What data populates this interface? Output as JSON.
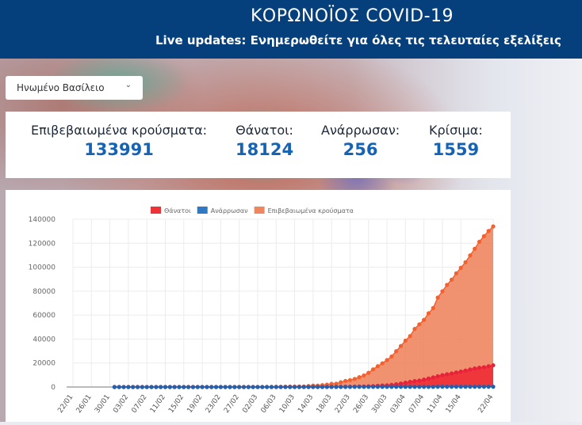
{
  "header": {
    "title": "ΚΟΡΩΝΟΪΟΣ COVID-19",
    "subtitle": "Live updates: Ενημερωθείτε για όλες τις τελευταίες εξελίξεις"
  },
  "country_select": {
    "value": "Ηνωμένο Βασίλειο",
    "icon": "chevron-down-icon"
  },
  "stats": [
    {
      "label": "Επιβεβαιωμένα κρούσματα:",
      "value": "133991"
    },
    {
      "label": "Θάνατοι:",
      "value": "18124"
    },
    {
      "label": "Ανάρρωσαν:",
      "value": "256"
    },
    {
      "label": "Κρίσιμα:",
      "value": "1559"
    }
  ],
  "chart_data": {
    "type": "area",
    "legend_position": "top",
    "grid": true,
    "ylim": [
      0,
      140000
    ],
    "yticks": [
      0,
      20000,
      40000,
      60000,
      80000,
      100000,
      120000,
      140000
    ],
    "xticks": [
      "22/01",
      "26/01",
      "30/01",
      "03/02",
      "07/02",
      "11/02",
      "15/02",
      "19/02",
      "23/02",
      "27/02",
      "02/03",
      "06/03",
      "10/03",
      "14/03",
      "18/03",
      "22/03",
      "26/03",
      "30/03",
      "03/04",
      "07/04",
      "11/04",
      "15/04",
      "22/04"
    ],
    "x": [
      "22/01",
      "23/01",
      "24/01",
      "25/01",
      "26/01",
      "27/01",
      "28/01",
      "29/01",
      "30/01",
      "31/01",
      "01/02",
      "02/02",
      "03/02",
      "04/02",
      "05/02",
      "06/02",
      "07/02",
      "08/02",
      "09/02",
      "10/02",
      "11/02",
      "12/02",
      "13/02",
      "14/02",
      "15/02",
      "16/02",
      "17/02",
      "18/02",
      "19/02",
      "20/02",
      "21/02",
      "22/02",
      "23/02",
      "24/02",
      "25/02",
      "26/02",
      "27/02",
      "28/02",
      "29/02",
      "01/03",
      "02/03",
      "03/03",
      "04/03",
      "05/03",
      "06/03",
      "07/03",
      "08/03",
      "09/03",
      "10/03",
      "11/03",
      "12/03",
      "13/03",
      "14/03",
      "15/03",
      "16/03",
      "17/03",
      "18/03",
      "19/03",
      "20/03",
      "21/03",
      "22/03",
      "23/03",
      "24/03",
      "25/03",
      "26/03",
      "27/03",
      "28/03",
      "29/03",
      "30/03",
      "31/03",
      "01/04",
      "02/04",
      "03/04",
      "04/04",
      "05/04",
      "06/04",
      "07/04",
      "08/04",
      "09/04",
      "10/04",
      "11/04",
      "12/04",
      "13/04",
      "14/04",
      "15/04",
      "16/04",
      "17/04",
      "18/04",
      "19/04",
      "20/04",
      "21/04",
      "22/04"
    ],
    "series": [
      {
        "name": "Επιβεβαιωμένα κρούσματα",
        "color": "#ee8660",
        "marker": "#f2612f",
        "values": [
          null,
          null,
          null,
          null,
          null,
          null,
          null,
          null,
          null,
          2,
          2,
          2,
          8,
          8,
          9,
          9,
          9,
          9,
          9,
          9,
          9,
          9,
          9,
          9,
          9,
          9,
          9,
          9,
          9,
          9,
          9,
          9,
          9,
          13,
          13,
          13,
          15,
          20,
          23,
          36,
          40,
          51,
          86,
          116,
          164,
          207,
          274,
          322,
          384,
          459,
          459,
          802,
          1144,
          1145,
          1551,
          1960,
          2642,
          2716,
          4014,
          5067,
          5745,
          6726,
          8164,
          9640,
          11812,
          14745,
          17312,
          19780,
          22453,
          25481,
          29865,
          34173,
          38689,
          42477,
          48436,
          52279,
          55949,
          61474,
          65872,
          74605,
          79874,
          85206,
          89570,
          94845,
          99483,
          104145,
          109769,
          115314,
          121172,
          125856,
          130172,
          133991
        ]
      },
      {
        "name": "Θάνατοι",
        "color": "#ee3338",
        "marker": "#e8223a",
        "values": [
          null,
          null,
          null,
          null,
          null,
          null,
          null,
          null,
          null,
          0,
          0,
          0,
          0,
          0,
          0,
          0,
          0,
          0,
          0,
          0,
          0,
          0,
          0,
          0,
          0,
          0,
          0,
          0,
          0,
          0,
          0,
          0,
          0,
          0,
          0,
          0,
          0,
          0,
          0,
          0,
          0,
          0,
          0,
          1,
          2,
          2,
          3,
          4,
          6,
          8,
          8,
          8,
          21,
          21,
          56,
          56,
          72,
          138,
          178,
          234,
          282,
          336,
          423,
          466,
          580,
          761,
          1021,
          1231,
          1411,
          1793,
          2357,
          2926,
          3611,
          4320,
          4943,
          5385,
          6171,
          7111,
          7993,
          8974,
          9892,
          10629,
          11347,
          12129,
          12894,
          13759,
          14607,
          15498,
          16095,
          16550,
          17378,
          18124
        ]
      },
      {
        "name": "Ανάρρωσαν",
        "color": "#2e78c4",
        "marker": "#1f63b0",
        "values": [
          null,
          null,
          null,
          null,
          null,
          null,
          null,
          null,
          null,
          0,
          0,
          0,
          0,
          0,
          0,
          0,
          0,
          0,
          0,
          0,
          0,
          0,
          8,
          8,
          8,
          8,
          8,
          8,
          8,
          8,
          8,
          8,
          8,
          8,
          8,
          8,
          8,
          8,
          8,
          8,
          8,
          8,
          8,
          8,
          8,
          18,
          18,
          18,
          18,
          19,
          19,
          19,
          19,
          19,
          19,
          65,
          65,
          65,
          65,
          65,
          65,
          135,
          135,
          135,
          135,
          135,
          135,
          135,
          135,
          135,
          135,
          135,
          135,
          135,
          135,
          135,
          135,
          135,
          135,
          256,
          256,
          256,
          256,
          256,
          256,
          256,
          256,
          256,
          256,
          256,
          256,
          256
        ]
      }
    ]
  }
}
